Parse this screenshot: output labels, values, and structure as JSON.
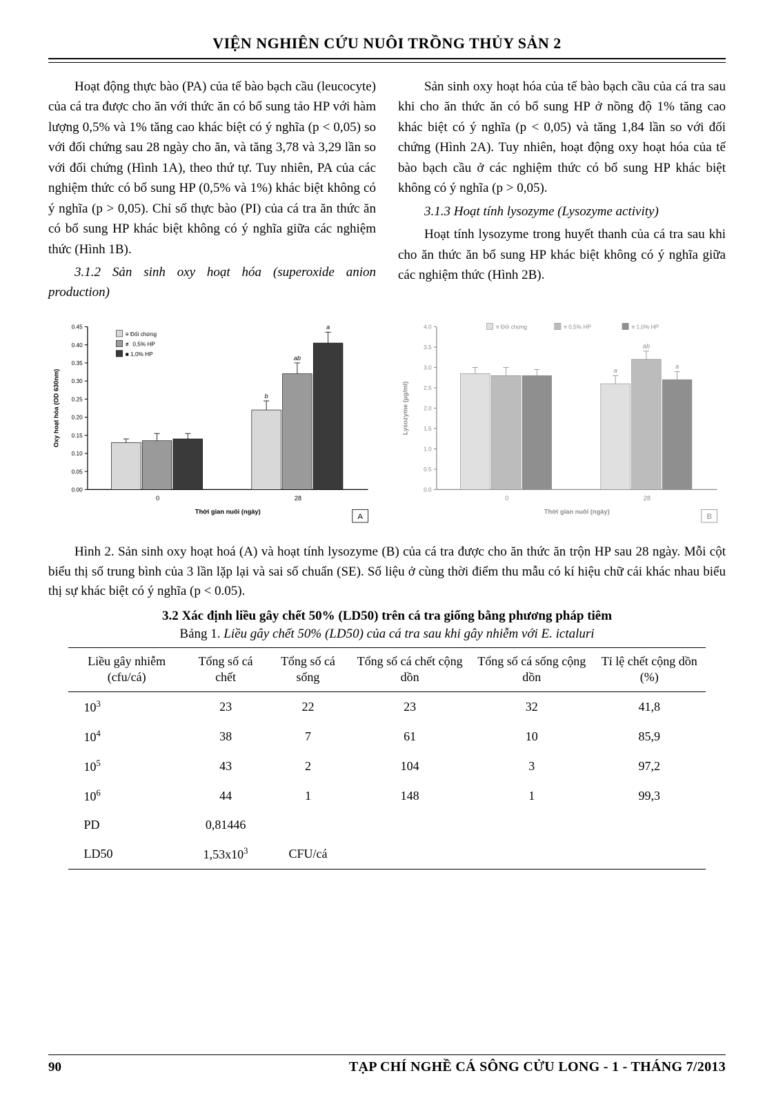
{
  "header": {
    "title": "VIỆN NGHIÊN CỨU NUÔI TRỒNG THỦY SẢN 2"
  },
  "left_col": {
    "p1": "Hoạt động thực bào (PA) của tế bào bạch cầu (leucocyte) của cá tra được cho ăn với thức ăn có bổ sung tảo HP với hàm lượng 0,5% và 1% tăng cao khác biệt có ý nghĩa (p < 0,05) so với đối chứng sau 28 ngày cho ăn, và tăng 3,78 và 3,29 lần so với đối chứng (Hình 1A), theo thứ tự. Tuy nhiên, PA của các nghiệm thức có bổ sung HP (0,5% và 1%) khác biệt không có ý nghĩa (p > 0,05). Chỉ số thực bào (PI) của cá tra ăn thức ăn có bổ sung HP khác biệt không có ý nghĩa giữa các nghiệm thức (Hình 1B).",
    "p2": "3.1.2 Sản sinh oxy hoạt hóa (superoxide anion production)"
  },
  "right_col": {
    "p1": "Sản sinh oxy hoạt hóa của tế bào bạch cầu của cá tra sau khi cho ăn thức ăn có bổ sung HP ở nồng độ 1% tăng cao khác biệt có ý nghĩa (p < 0,05) và tăng 1,84 lần so với đối chứng (Hình 2A). Tuy nhiên, hoạt động oxy hoạt hóa của tế bào bạch cầu ở các nghiệm thức có bổ sung HP khác biệt không có ý nghĩa (p > 0,05).",
    "p2": "3.1.3 Hoạt tính lysozyme (Lysozyme activity)",
    "p3": "Hoạt tính lysozyme trong huyết thanh của cá tra sau khi cho ăn thức ăn bổ sung HP khác biệt không có ý nghĩa giữa các nghiệm thức (Hình 2B)."
  },
  "chart_a": {
    "type": "bar",
    "ylabel": "Oxy hoạt hóa (OD 630nm)",
    "xlabel": "Thời gian nuôi (ngày)",
    "legend": [
      "Đối chứng",
      "0,5% HP",
      "1,0% HP"
    ],
    "legend_markers": [
      "≡",
      "≢",
      "■"
    ],
    "categories": [
      "0",
      "28"
    ],
    "ylim": [
      0,
      0.45
    ],
    "ytick_step": 0.05,
    "ytick_labels": [
      "0.00",
      "0.05",
      "0.10",
      "0.15",
      "0.20",
      "0.25",
      "0.30",
      "0.35",
      "0.40",
      "0.45"
    ],
    "series": [
      {
        "name": "Đối chứng",
        "values": [
          0.13,
          0.22
        ],
        "fill": "#d8d8d8",
        "pattern": "light"
      },
      {
        "name": "0,5% HP",
        "values": [
          0.135,
          0.32
        ],
        "fill": "#9a9a9a",
        "pattern": "mid"
      },
      {
        "name": "1,0% HP",
        "values": [
          0.14,
          0.405
        ],
        "fill": "#3a3a3a",
        "pattern": "dark"
      }
    ],
    "error_bars": [
      [
        0.01,
        0.02,
        0.015
      ],
      [
        0.025,
        0.03,
        0.03
      ]
    ],
    "sig_labels": {
      "28": [
        "b",
        "ab",
        "a"
      ]
    },
    "panel_label": "A",
    "bar_width": 0.22,
    "colors": {
      "axis": "#000000",
      "grid": "#ffffff",
      "bg": "#ffffff"
    },
    "fontsize": {
      "tick": 8,
      "label": 9,
      "legend": 8
    }
  },
  "chart_b": {
    "type": "bar",
    "ylabel": "Lysozyme (µg/ml)",
    "xlabel": "Thời gian nuôi (ngày)",
    "legend": [
      "Đối chứng",
      "0,5% HP",
      "1,0% HP"
    ],
    "categories": [
      "0",
      "28"
    ],
    "ylim": [
      0,
      4.0
    ],
    "ytick_step": 0.5,
    "ytick_labels": [
      "0.0",
      "0.5",
      "1.0",
      "1.5",
      "2.0",
      "2.5",
      "3.0",
      "3.5",
      "4.0"
    ],
    "series": [
      {
        "name": "Đối chứng",
        "values": [
          2.85,
          2.6
        ],
        "fill": "#e0e0e0"
      },
      {
        "name": "0,5% HP",
        "values": [
          2.8,
          3.2
        ],
        "fill": "#bcbcbc"
      },
      {
        "name": "1,0% HP",
        "values": [
          2.8,
          2.7
        ],
        "fill": "#8f8f8f"
      }
    ],
    "error_bars": [
      [
        0.15,
        0.2,
        0.15
      ],
      [
        0.2,
        0.2,
        0.2
      ]
    ],
    "sig_labels": {
      "28": [
        "a",
        "ab",
        "a"
      ]
    },
    "panel_label": "B",
    "bar_width": 0.22,
    "colors": {
      "axis": "#7a7a7a",
      "bg": "#ffffff",
      "text": "#7a7a7a"
    },
    "fontsize": {
      "tick": 8,
      "label": 9,
      "legend": 8
    }
  },
  "figure_caption": "Hình 2. Sản sinh oxy hoạt hoá (A) và hoạt tính lysozyme (B) của cá tra được cho ăn thức ăn trộn HP sau 28 ngày. Mỗi cột biểu thị số trung bình của 3 lần lặp lại và sai số chuẩn (SE). Số liệu ở cùng thời điểm thu mẫu có kí hiệu chữ cái khác nhau biểu thị sự khác biệt có ý nghĩa (p < 0.05).",
  "section_heading": "3.2 Xác định liều gây chết 50% (LD50) trên cá tra giống bằng phương pháp tiêm",
  "table_caption_prefix": "Bảng 1. ",
  "table_caption_italic": "Liều gây chết 50% (LD50) của cá tra sau khi gây nhiễm với E. ictaluri",
  "table": {
    "columns": [
      "Liều gây nhiễm (cfu/cá)",
      "Tổng số cá chết",
      "Tổng số cá sống",
      "Tổng số cá chết cộng dồn",
      "Tổng số cá sống cộng dồn",
      "Tỉ lệ chết cộng dồn (%)"
    ],
    "rows": [
      {
        "dose_base": "10",
        "dose_exp": "3",
        "c2": "23",
        "c3": "22",
        "c4": "23",
        "c5": "32",
        "c6": "41,8"
      },
      {
        "dose_base": "10",
        "dose_exp": "4",
        "c2": "38",
        "c3": "7",
        "c4": "61",
        "c5": "10",
        "c6": "85,9"
      },
      {
        "dose_base": "10",
        "dose_exp": "5",
        "c2": "43",
        "c3": "2",
        "c4": "104",
        "c5": "3",
        "c6": "97,2"
      },
      {
        "dose_base": "10",
        "dose_exp": "6",
        "c2": "44",
        "c3": "1",
        "c4": "148",
        "c5": "1",
        "c6": "99,3"
      },
      {
        "dose_plain": "PD",
        "c2": "0,81446",
        "c3": "",
        "c4": "",
        "c5": "",
        "c6": ""
      },
      {
        "dose_plain": "LD50",
        "c2": "1,53x10",
        "c2_exp": "3",
        "c3": "CFU/cá",
        "c4": "",
        "c5": "",
        "c6": ""
      }
    ]
  },
  "footer": {
    "page": "90",
    "journal": "TẠP CHÍ NGHỀ CÁ SÔNG CỬU LONG - 1 - THÁNG 7/2013"
  }
}
